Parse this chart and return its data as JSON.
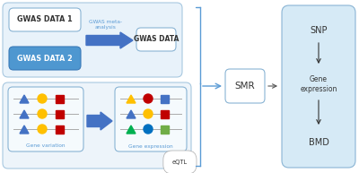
{
  "bg_color": "#ffffff",
  "outer1_fc": "#e8f2fa",
  "outer1_ec": "#a8c8e0",
  "outer2_fc": "#edf4fa",
  "outer2_ec": "#a8c8e0",
  "gwas1_fc": "#ffffff",
  "gwas1_ec": "#8ab4d4",
  "gwas2_fc": "#4e97d0",
  "gwas2_ec": "#3a7ab8",
  "gwas_data_fc": "#ffffff",
  "gwas_data_ec": "#8ab4d4",
  "gene_var_fc": "#f5fafd",
  "gene_var_ec": "#8ab4d4",
  "gene_exp_fc": "#f5fafd",
  "gene_exp_ec": "#8ab4d4",
  "smr_fc": "#ffffff",
  "smr_ec": "#8ab4d4",
  "right_fc": "#d6eaf6",
  "right_ec": "#8ab4d4",
  "arrow_fc": "#4472c4",
  "bracket_color": "#5b9bd5",
  "line_color": "#aaaaaa",
  "gwas1_text": "GWAS DATA 1",
  "gwas2_text": "GWAS DATA 2",
  "gwas_meta_text": "GWAS meta-\nanalysis",
  "gwas_data_text": "GWAS DATA",
  "gene_var_label": "Gene variation",
  "gene_exp_label": "Gene expression",
  "eqtl_label": "eQTL",
  "smr_text": "SMR",
  "snp_text": "SNP",
  "gene_expr_text": "Gene\nexpression",
  "bmd_text": "BMD",
  "gv_colors": [
    [
      "#4472c4",
      "#ffc000",
      "#c00000"
    ],
    [
      "#4472c4",
      "#ffc000",
      "#c00000"
    ],
    [
      "#4472c4",
      "#ffc000",
      "#c00000"
    ]
  ],
  "ge_colors": [
    [
      "#ffc000",
      "#c00000",
      "#4472c4"
    ],
    [
      "#4472c4",
      "#ffc000",
      "#c00000"
    ],
    [
      "#00b050",
      "#0070c0",
      "#70ad47"
    ]
  ]
}
